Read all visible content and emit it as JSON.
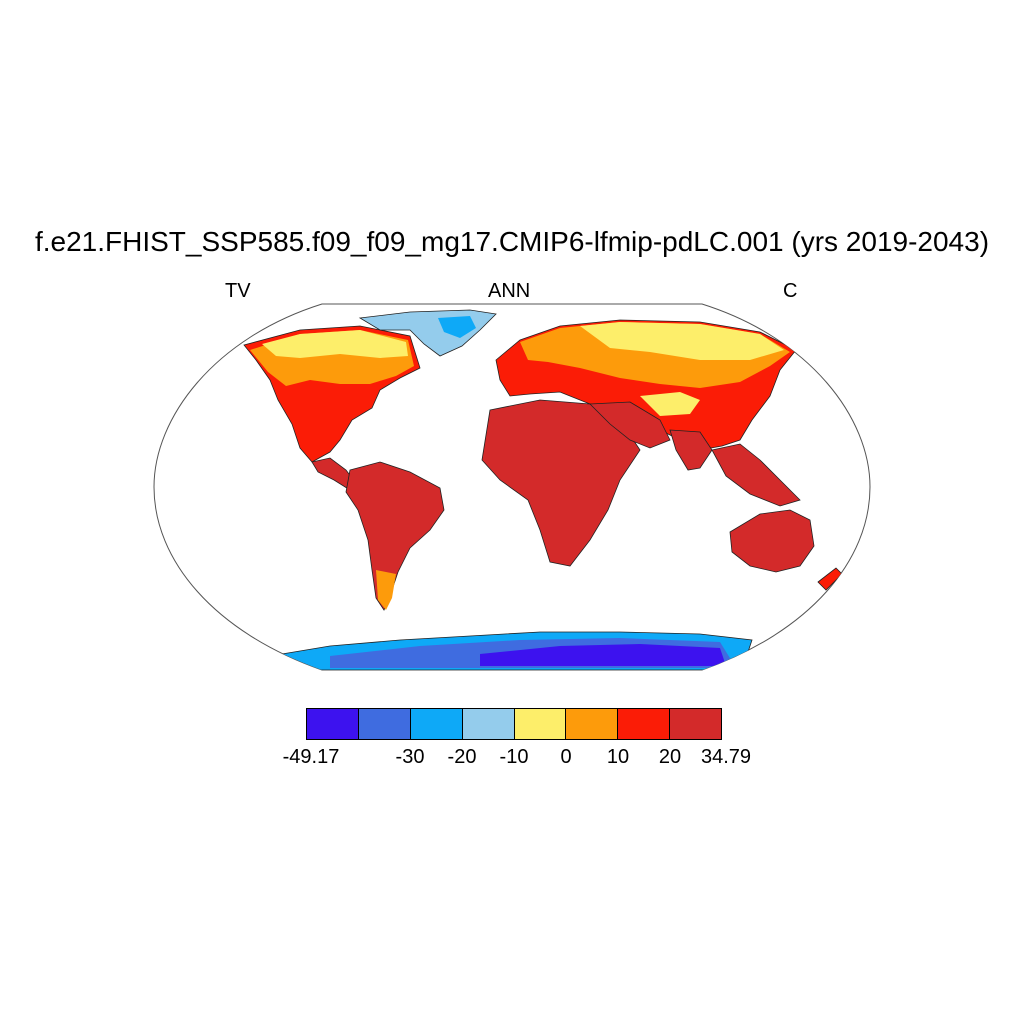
{
  "title": "f.e21.FHIST_SSP585.f09_f09_mg17.CMIP6-lfmip-pdLC.001 (yrs 2019-2043)",
  "label_left": "TV",
  "label_center": "ANN",
  "label_right": "C",
  "colorbar": {
    "colors": [
      "#3d12ef",
      "#3f6ce0",
      "#0ea9f7",
      "#94ccec",
      "#fdee6a",
      "#fd9b0b",
      "#fb1c06",
      "#d32a2a"
    ],
    "tick_labels": [
      "-49.17",
      "-30",
      "-20",
      "-10",
      "0",
      "10",
      "20",
      "34.79"
    ]
  },
  "map": {
    "projection": "Robinson",
    "land_fill_colors": {
      "greenland": "#94ccec",
      "greenland_core": "#0ea9f7",
      "arctic_land": "#fdee6a",
      "mid_latitude": "#fd9b0b",
      "warm": "#fb1c06",
      "tropics": "#d32a2a",
      "antarctica_edge": "#0ea9f7",
      "antarctica_mid": "#3f6ce0",
      "antarctica_core": "#3d12ef"
    }
  }
}
